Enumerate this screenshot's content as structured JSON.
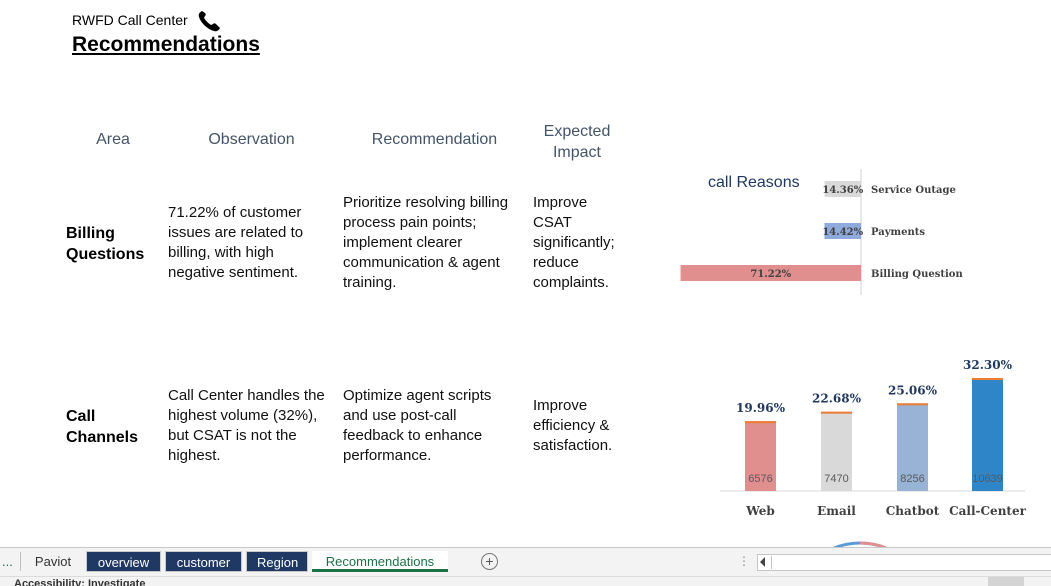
{
  "app_title": "RWFD Call Center",
  "page_title": "Recommendations",
  "table": {
    "headers": [
      "Area",
      "Observation",
      "Recommendation",
      "Expected Impact"
    ],
    "rows": [
      {
        "area": [
          "Billing",
          "Questions"
        ],
        "observation": [
          "71.22% of customer",
          "issues are related to",
          "billing, with high",
          "negative sentiment."
        ],
        "recommendation": [
          "Prioritize resolving billing",
          "process pain points;",
          "implement clearer",
          "communication & agent",
          "training."
        ],
        "impact": [
          "Improve",
          "CSAT",
          "significantly;",
          "reduce",
          "complaints."
        ]
      },
      {
        "area": [
          "Call",
          "Channels"
        ],
        "observation": [
          "Call Center handles the",
          "highest volume (32%),",
          "but CSAT is not the",
          "highest."
        ],
        "recommendation": [
          "Optimize agent scripts",
          "and use post-call",
          "feedback to enhance",
          "performance."
        ],
        "impact": [
          "Improve",
          "efficiency &",
          "satisfaction."
        ]
      }
    ]
  },
  "chart_data": [
    {
      "type": "bar",
      "orientation": "horizontal",
      "title": "call Reasons",
      "categories": [
        "Service Outage",
        "Payments",
        "Billing Question"
      ],
      "values": [
        14.36,
        14.42,
        71.22
      ],
      "value_labels": [
        "14.36%",
        "14.42%",
        "71.22%"
      ],
      "colors": [
        "#d9d9d9",
        "#8faadc",
        "#e08e8e"
      ]
    },
    {
      "type": "bar",
      "title": "",
      "categories": [
        "Web",
        "Email",
        "Chatbot",
        "Call-Center"
      ],
      "values": [
        6576,
        7470,
        8256,
        10639
      ],
      "value_labels": [
        "6576",
        "7470",
        "8256",
        "10639"
      ],
      "percent_labels": [
        "19.96%",
        "22.68%",
        "25.06%",
        "32.30%"
      ],
      "colors": [
        "#e08e8e",
        "#d9d9d9",
        "#97b3d6",
        "#2e86c9"
      ]
    }
  ],
  "sheet_tabs": [
    {
      "label": "Paviot",
      "style": "plain"
    },
    {
      "label": "overview",
      "style": "dark"
    },
    {
      "label": "customer",
      "style": "dark"
    },
    {
      "label": "Region",
      "style": "dark"
    },
    {
      "label": "Recommendations",
      "style": "active"
    }
  ],
  "tab_nav_dots": "...",
  "add_sheet": "+",
  "status_text": "Accessibility: Investigate"
}
